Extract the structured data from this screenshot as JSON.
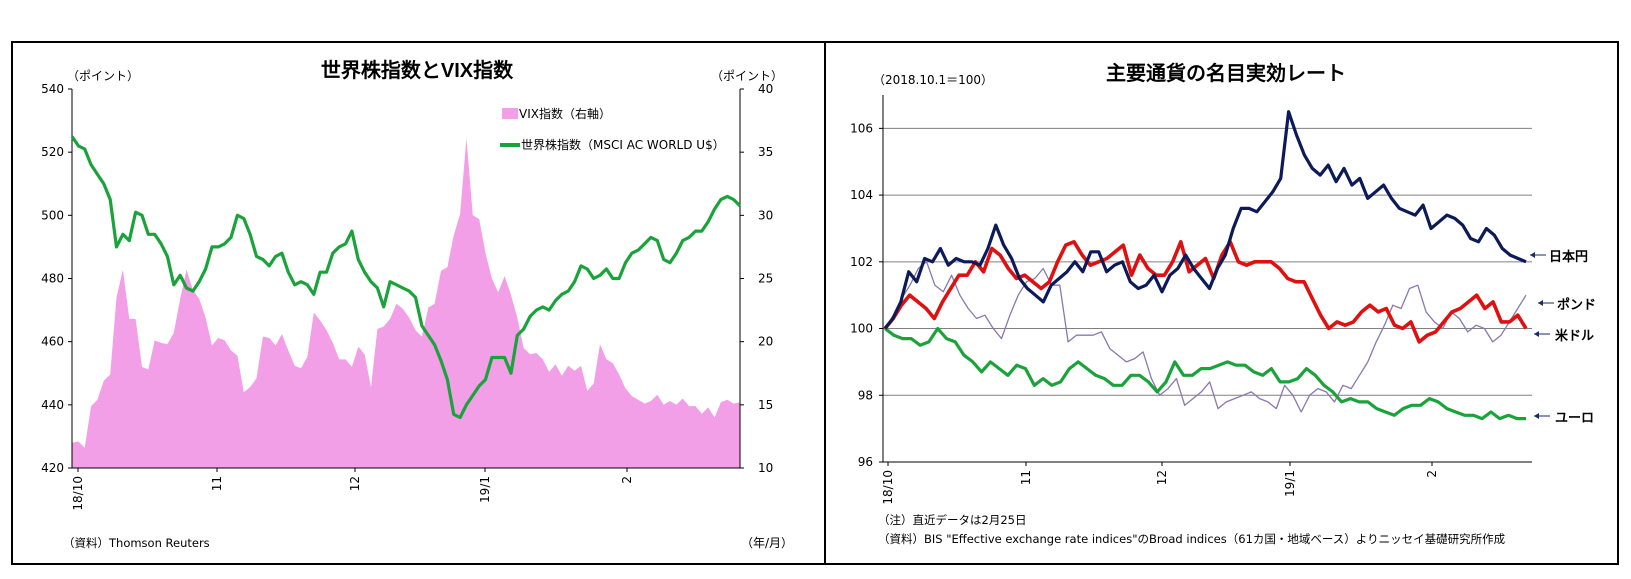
{
  "left": {
    "title": "世界株指数とVIX指数",
    "unit_left": "（ポイント）",
    "unit_right": "（ポイント）",
    "legend": {
      "vix": "VIX指数（右軸）",
      "msci": "世界株指数（MSCI AC WORLD U$）"
    },
    "source": "（資料）Thomson Reuters",
    "xunit": "（年/月）",
    "xticks": [
      "18/10",
      "11",
      "12",
      "19/1",
      "2"
    ],
    "colors": {
      "vix": "#f29fe8",
      "msci": "#1aa33a"
    }
  },
  "right": {
    "title": "主要通貨の名目実効レート",
    "base_note": "（2018.10.1＝100）",
    "note1": "（注）直近データは2月25日",
    "note2": "（資料）BIS \"Effective exchange rate indices\"のBroad  indices（61カ国・地域ベース）よりニッセイ基礎研究所作成",
    "xticks": [
      "18/10",
      "11",
      "12",
      "19/1",
      "2"
    ],
    "labels": {
      "jpy": "日本円",
      "gbp": "ポンド",
      "usd": "米ドル",
      "eur": "ユーロ"
    },
    "colors": {
      "jpy": "#0d1a5a",
      "usd": "#e01010",
      "gbp": "#8878b0",
      "eur": "#1aa33a"
    }
  },
  "chart_data": [
    {
      "type": "area+line",
      "title": "世界株指数とVIX指数",
      "ylim_left": [
        420,
        540
      ],
      "yticks_left": [
        420,
        440,
        460,
        480,
        500,
        520,
        540
      ],
      "ylim_right": [
        10,
        40
      ],
      "yticks_right": [
        10,
        15,
        20,
        25,
        30,
        35,
        40
      ],
      "xlabel": "（年/月）",
      "x_ticks": [
        "18/10",
        "11",
        "12",
        "19/1",
        "2"
      ],
      "series": [
        {
          "name": "VIX指数（右軸）",
          "axis": "right",
          "type": "area",
          "values": [
            12.0,
            12.1,
            11.6,
            14.9,
            15.4,
            16.9,
            17.4,
            23.5,
            25.7,
            21.8,
            21.8,
            18.0,
            17.8,
            20.1,
            19.9,
            19.8,
            20.7,
            23.4,
            25.7,
            24.1,
            23.4,
            21.9,
            19.7,
            20.3,
            20.1,
            19.3,
            18.9,
            16.0,
            16.4,
            17.1,
            20.4,
            20.3,
            19.7,
            20.6,
            19.3,
            18.1,
            17.9,
            18.8,
            22.3,
            21.7,
            20.9,
            19.9,
            18.6,
            18.6,
            18.0,
            19.6,
            19.0,
            16.4,
            21.0,
            21.2,
            21.8,
            23.0,
            22.6,
            21.9,
            20.9,
            20.4,
            22.7,
            23.0,
            25.6,
            25.9,
            28.4,
            30.1,
            36.1,
            30.0,
            29.7,
            27.0,
            25.0,
            23.9,
            25.2,
            23.7,
            21.9,
            19.5,
            19.0,
            19.1,
            18.6,
            17.6,
            18.2,
            17.3,
            18.1,
            17.7,
            18.1,
            16.1,
            16.7,
            19.8,
            18.6,
            18.3,
            17.4,
            16.3,
            15.7,
            15.4,
            15.1,
            15.3,
            15.8,
            15.0,
            15.3,
            15.0,
            15.5,
            14.9,
            14.9,
            14.3,
            14.8,
            14.0,
            15.2,
            15.4,
            15.1,
            15.2
          ]
        },
        {
          "name": "世界株指数（MSCI AC WORLD U$）",
          "axis": "left",
          "type": "line",
          "values": [
            525,
            522,
            521,
            516,
            513,
            510,
            505,
            490,
            494,
            492,
            501,
            500,
            494,
            494,
            491,
            487,
            478,
            481,
            477,
            476,
            479,
            483,
            490,
            490,
            491,
            493,
            500,
            499,
            494,
            487,
            486,
            484,
            487,
            488,
            482,
            478,
            479,
            478,
            475,
            482,
            482,
            488,
            490,
            491,
            495,
            486,
            482,
            479,
            477,
            471,
            479,
            478,
            477,
            476,
            474,
            465,
            462,
            459,
            454,
            448,
            437,
            436,
            440,
            443,
            446,
            448,
            455,
            455,
            455,
            450,
            462,
            464,
            468,
            470,
            471,
            470,
            473,
            475,
            476,
            479,
            484,
            483,
            480,
            481,
            483,
            480,
            480,
            485,
            488,
            489,
            491,
            493,
            492,
            486,
            485,
            488,
            492,
            493,
            495,
            495,
            498,
            502,
            505,
            506,
            505,
            503
          ]
        }
      ]
    },
    {
      "type": "line",
      "title": "主要通貨の名目実効レート",
      "base_note": "（2018.10.1＝100）",
      "ylim": [
        96,
        107
      ],
      "yticks": [
        96,
        98,
        100,
        102,
        104,
        106
      ],
      "x_ticks": [
        "18/10",
        "11",
        "12",
        "19/1",
        "2"
      ],
      "series": [
        {
          "name": "日本円",
          "values": [
            100.0,
            100.3,
            100.8,
            101.7,
            101.4,
            102.1,
            102.0,
            102.4,
            101.9,
            102.1,
            102.0,
            102.0,
            101.9,
            102.4,
            103.1,
            102.5,
            102.1,
            101.5,
            101.2,
            101.0,
            100.8,
            101.3,
            101.5,
            101.7,
            102.0,
            101.7,
            102.3,
            102.3,
            101.7,
            101.9,
            102.0,
            101.4,
            101.2,
            101.3,
            101.6,
            101.1,
            101.6,
            101.8,
            102.2,
            101.8,
            101.5,
            101.2,
            101.8,
            102.2,
            103.0,
            103.6,
            103.6,
            103.5,
            103.8,
            104.1,
            104.5,
            106.5,
            105.8,
            105.2,
            104.8,
            104.6,
            104.9,
            104.4,
            104.8,
            104.3,
            104.5,
            103.9,
            104.1,
            104.3,
            103.9,
            103.6,
            103.5,
            103.4,
            103.7,
            103.0,
            103.2,
            103.4,
            103.3,
            103.1,
            102.7,
            102.6,
            103.0,
            102.8,
            102.4,
            102.2,
            102.1,
            102.0
          ]
        },
        {
          "name": "米ドル",
          "values": [
            100.0,
            100.3,
            100.7,
            101.0,
            100.8,
            100.6,
            100.3,
            100.8,
            101.2,
            101.6,
            101.6,
            102.0,
            101.7,
            102.4,
            102.2,
            101.8,
            101.5,
            101.6,
            101.4,
            101.2,
            101.4,
            102.0,
            102.5,
            102.6,
            102.2,
            101.9,
            102.0,
            102.1,
            102.3,
            102.5,
            101.6,
            102.2,
            101.8,
            101.6,
            101.6,
            102.0,
            102.6,
            101.7,
            101.9,
            102.1,
            101.5,
            102.2,
            102.6,
            102.0,
            101.9,
            102.0,
            102.0,
            102.0,
            101.8,
            101.5,
            101.4,
            101.4,
            100.9,
            100.4,
            100.0,
            100.2,
            100.1,
            100.2,
            100.5,
            100.7,
            100.5,
            100.6,
            100.1,
            100.0,
            100.2,
            99.6,
            99.8,
            99.9,
            100.2,
            100.5,
            100.6,
            100.8,
            101.0,
            100.6,
            100.8,
            100.2,
            100.2,
            100.4,
            100.0
          ]
        },
        {
          "name": "ポンド",
          "values": [
            100.0,
            100.4,
            100.9,
            101.3,
            101.8,
            102.0,
            101.3,
            101.1,
            101.6,
            101.0,
            100.6,
            100.3,
            100.4,
            100.0,
            99.7,
            100.4,
            101.0,
            101.4,
            101.5,
            101.8,
            101.3,
            101.3,
            99.6,
            99.8,
            99.8,
            99.8,
            99.9,
            99.4,
            99.2,
            99.0,
            99.1,
            99.3,
            98.5,
            98.0,
            98.2,
            98.5,
            97.7,
            97.9,
            98.1,
            98.4,
            97.6,
            97.8,
            97.9,
            98.0,
            98.1,
            97.9,
            97.8,
            97.6,
            98.3,
            98.0,
            97.5,
            98.0,
            98.2,
            98.1,
            97.8,
            98.3,
            98.2,
            98.6,
            99.0,
            99.6,
            100.1,
            100.7,
            100.6,
            101.2,
            101.3,
            100.5,
            100.2,
            100.0,
            100.5,
            100.3,
            99.9,
            100.1,
            100.0,
            99.6,
            99.8,
            100.2,
            100.6,
            101.0
          ]
        },
        {
          "name": "ユーロ",
          "values": [
            100.0,
            99.8,
            99.7,
            99.7,
            99.5,
            99.6,
            100.0,
            99.7,
            99.6,
            99.2,
            99.0,
            98.7,
            99.0,
            98.8,
            98.6,
            98.9,
            98.8,
            98.3,
            98.5,
            98.3,
            98.4,
            98.8,
            99.0,
            98.8,
            98.6,
            98.5,
            98.3,
            98.3,
            98.6,
            98.6,
            98.4,
            98.1,
            98.4,
            99.0,
            98.6,
            98.6,
            98.8,
            98.8,
            98.9,
            99.0,
            98.9,
            98.9,
            98.7,
            98.6,
            98.8,
            98.4,
            98.4,
            98.5,
            98.8,
            98.6,
            98.3,
            98.1,
            97.8,
            97.9,
            97.8,
            97.8,
            97.6,
            97.5,
            97.4,
            97.6,
            97.7,
            97.7,
            97.9,
            97.8,
            97.6,
            97.5,
            97.4,
            97.4,
            97.3,
            97.5,
            97.3,
            97.4,
            97.3,
            97.3
          ]
        }
      ]
    }
  ]
}
